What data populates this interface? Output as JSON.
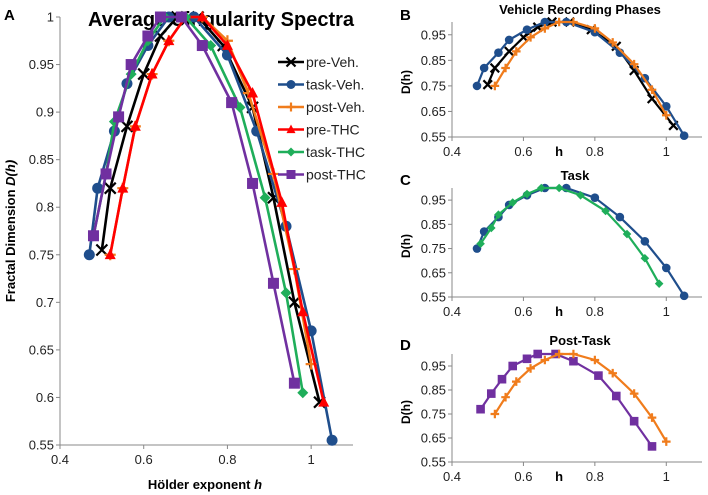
{
  "chart_data": [
    {
      "panel": "A",
      "type": "line",
      "title": "Average Singularity Spectra",
      "xlabel": "Hölder exponent",
      "xlabel_var": "h",
      "ylabel": "Fractal Dimension",
      "ylabel_var": "D(h)",
      "xlim": [
        0.4,
        1.1
      ],
      "ylim": [
        0.55,
        1.0
      ],
      "xticks": [
        "0.4",
        "0.6",
        "0.8",
        "1"
      ],
      "xtick_values": [
        0.4,
        0.6,
        0.8,
        1.0
      ],
      "yticks": [
        "0.55",
        "0.6",
        "0.65",
        "0.7",
        "0.75",
        "0.8",
        "0.85",
        "0.9",
        "0.95",
        "1"
      ],
      "ytick_values": [
        0.55,
        0.6,
        0.65,
        0.7,
        0.75,
        0.8,
        0.85,
        0.9,
        0.95,
        1.0
      ],
      "legend_position": "right",
      "series_names": [
        "pre-Veh.",
        "task-Veh.",
        "post-Veh.",
        "pre-THC",
        "task-THC",
        "post-THC"
      ]
    },
    {
      "panel": "B",
      "type": "line",
      "title": "Vehicle Recording Phases",
      "xlabel": "h",
      "ylabel": "D(h)",
      "xlim": [
        0.4,
        1.1
      ],
      "ylim": [
        0.55,
        1.0
      ],
      "xticks": [
        "0.4",
        "0.6",
        "0.8",
        "1"
      ],
      "xtick_values": [
        0.4,
        0.6,
        0.8,
        1.0
      ],
      "yticks": [
        "0.55",
        "0.65",
        "0.75",
        "0.85",
        "0.95"
      ],
      "ytick_values": [
        0.55,
        0.65,
        0.75,
        0.85,
        0.95
      ],
      "series_names": [
        "pre-Veh.",
        "task-Veh.",
        "post-Veh."
      ]
    },
    {
      "panel": "C",
      "type": "line",
      "title": "Task",
      "xlabel": "h",
      "ylabel": "D(h)",
      "xlim": [
        0.4,
        1.1
      ],
      "ylim": [
        0.55,
        1.0
      ],
      "xticks": [
        "0.4",
        "0.6",
        "0.8",
        "1"
      ],
      "xtick_values": [
        0.4,
        0.6,
        0.8,
        1.0
      ],
      "yticks": [
        "0.55",
        "0.65",
        "0.75",
        "0.85",
        "0.95"
      ],
      "ytick_values": [
        0.55,
        0.65,
        0.75,
        0.85,
        0.95
      ],
      "series_names": [
        "task-Veh.",
        "task-THC"
      ]
    },
    {
      "panel": "D",
      "type": "line",
      "title": "Post-Task",
      "xlabel": "h",
      "ylabel": "D(h)",
      "xlim": [
        0.4,
        1.1
      ],
      "ylim": [
        0.55,
        1.0
      ],
      "xticks": [
        "0.4",
        "0.6",
        "0.8",
        "1"
      ],
      "xtick_values": [
        0.4,
        0.6,
        0.8,
        1.0
      ],
      "yticks": [
        "0.55",
        "0.65",
        "0.75",
        "0.85",
        "0.95"
      ],
      "ytick_values": [
        0.55,
        0.65,
        0.75,
        0.85,
        0.95
      ],
      "series_names": [
        "post-THC",
        "post-Veh."
      ]
    }
  ],
  "series": {
    "pre-Veh.": {
      "color": "#000000",
      "marker": "x",
      "x": [
        0.5,
        0.52,
        0.56,
        0.6,
        0.64,
        0.68,
        0.73,
        0.79,
        0.86,
        0.91,
        0.96,
        1.02
      ],
      "y": [
        0.755,
        0.82,
        0.885,
        0.94,
        0.98,
        1.0,
        1.0,
        0.97,
        0.905,
        0.81,
        0.7,
        0.595
      ]
    },
    "task-Veh.": {
      "color": "#1f4e8c",
      "marker": "circle",
      "x": [
        0.47,
        0.49,
        0.53,
        0.56,
        0.61,
        0.66,
        0.72,
        0.8,
        0.87,
        0.94,
        1.0,
        1.05
      ],
      "y": [
        0.75,
        0.82,
        0.88,
        0.93,
        0.97,
        1.0,
        1.0,
        0.96,
        0.88,
        0.78,
        0.67,
        0.555
      ]
    },
    "post-Veh.": {
      "color": "#f07c1c",
      "marker": "plus",
      "x": [
        0.52,
        0.55,
        0.58,
        0.62,
        0.66,
        0.7,
        0.74,
        0.8,
        0.85,
        0.91,
        0.96,
        1.0
      ],
      "y": [
        0.75,
        0.82,
        0.885,
        0.94,
        0.975,
        1.0,
        1.0,
        0.975,
        0.92,
        0.835,
        0.735,
        0.635
      ]
    },
    "pre-THC": {
      "color": "#ff0000",
      "marker": "triangle",
      "x": [
        0.52,
        0.55,
        0.58,
        0.62,
        0.66,
        0.7,
        0.74,
        0.8,
        0.86,
        0.93,
        0.98,
        1.03
      ],
      "y": [
        0.75,
        0.82,
        0.885,
        0.94,
        0.975,
        1.0,
        1.0,
        0.97,
        0.92,
        0.805,
        0.69,
        0.595
      ]
    },
    "task-THC": {
      "color": "#1fae5a",
      "marker": "diamond",
      "x": [
        0.48,
        0.51,
        0.53,
        0.57,
        0.61,
        0.65,
        0.7,
        0.76,
        0.83,
        0.89,
        0.94,
        0.98
      ],
      "y": [
        0.77,
        0.835,
        0.89,
        0.94,
        0.975,
        1.0,
        1.0,
        0.97,
        0.905,
        0.81,
        0.71,
        0.605
      ]
    },
    "post-THC": {
      "color": "#7030a0",
      "marker": "square",
      "x": [
        0.48,
        0.51,
        0.54,
        0.57,
        0.61,
        0.64,
        0.69,
        0.74,
        0.81,
        0.86,
        0.91,
        0.96
      ],
      "y": [
        0.77,
        0.835,
        0.895,
        0.95,
        0.98,
        1.0,
        1.0,
        0.97,
        0.91,
        0.825,
        0.72,
        0.615
      ]
    }
  }
}
